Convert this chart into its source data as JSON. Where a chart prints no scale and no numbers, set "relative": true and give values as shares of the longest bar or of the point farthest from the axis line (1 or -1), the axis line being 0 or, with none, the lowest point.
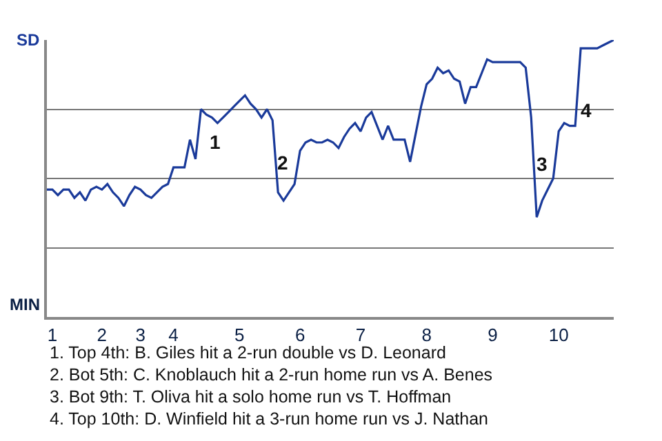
{
  "chart_data": {
    "type": "line",
    "relative": true,
    "categories": [
      null,
      "1",
      null,
      null,
      null,
      null,
      null,
      null,
      null,
      null,
      "2",
      null,
      null,
      null,
      null,
      null,
      null,
      "3",
      null,
      null,
      null,
      null,
      null,
      "4",
      null,
      null,
      null,
      null,
      null,
      null,
      null,
      null,
      null,
      null,
      null,
      "5",
      null,
      null,
      null,
      null,
      null,
      null,
      null,
      null,
      null,
      null,
      "6",
      null,
      null,
      null,
      null,
      null,
      null,
      null,
      null,
      null,
      null,
      "7",
      null,
      null,
      null,
      null,
      null,
      null,
      null,
      null,
      null,
      null,
      null,
      "8",
      null,
      null,
      null,
      null,
      null,
      null,
      null,
      null,
      null,
      null,
      null,
      "9",
      null,
      null,
      null,
      null,
      null,
      null,
      null,
      null,
      null,
      null,
      null,
      "10",
      null,
      null,
      null,
      null,
      null,
      null,
      null,
      null,
      null,
      null
    ],
    "series": [
      {
        "color": "#1a3a9a",
        "values": [
          0.46,
          0.46,
          0.44,
          0.46,
          0.46,
          0.43,
          0.45,
          0.42,
          0.46,
          0.47,
          0.46,
          0.48,
          0.45,
          0.43,
          0.4,
          0.44,
          0.47,
          0.46,
          0.44,
          0.43,
          0.45,
          0.47,
          0.48,
          0.54,
          0.54,
          0.54,
          0.64,
          0.57,
          0.75,
          0.73,
          0.72,
          0.7,
          0.72,
          0.74,
          0.76,
          0.78,
          0.8,
          0.77,
          0.75,
          0.72,
          0.75,
          0.71,
          0.45,
          0.42,
          0.45,
          0.48,
          0.6,
          0.63,
          0.64,
          0.63,
          0.63,
          0.64,
          0.63,
          0.61,
          0.65,
          0.68,
          0.7,
          0.67,
          0.72,
          0.74,
          0.69,
          0.64,
          0.69,
          0.64,
          0.64,
          0.64,
          0.56,
          0.66,
          0.76,
          0.84,
          0.86,
          0.9,
          0.88,
          0.89,
          0.86,
          0.85,
          0.77,
          0.83,
          0.83,
          0.88,
          0.93,
          0.92,
          0.92,
          0.92,
          0.92,
          0.92,
          0.92,
          0.9,
          0.72,
          0.36,
          0.42,
          0.46,
          0.5,
          0.67,
          0.7,
          0.69,
          0.69,
          0.97,
          0.97,
          0.97,
          0.97,
          0.98,
          0.99,
          1.0
        ]
      }
    ],
    "grid": "y",
    "marker": "none",
    "line_style": "solid",
    "annotations": [
      "SD",
      "MIN",
      "1",
      "2",
      "3",
      "4",
      "1. Top 4th: B. Giles hit a 2-run double vs D. Leonard",
      "2. Bot 5th: C. Knoblauch hit a 2-run home run vs A. Benes",
      "3. Bot 9th: T. Oliva hit a solo home run vs T. Hoffman",
      "4. Top 10th: D. Winfield hit a 3-run home run vs J. Nathan"
    ]
  }
}
